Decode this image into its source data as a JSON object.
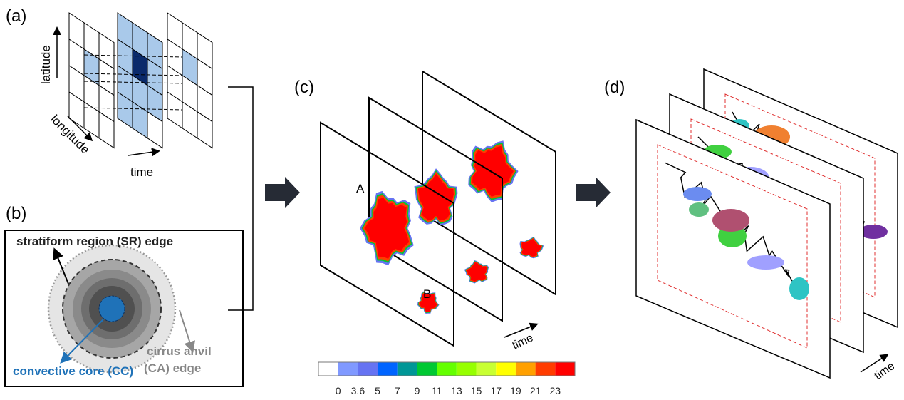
{
  "panels": {
    "a": {
      "label": "(a)",
      "latitude": "latitude",
      "longitude": "longitude",
      "time": "time"
    },
    "b": {
      "label": "(b)",
      "sr_edge": "stratiform region (SR) edge",
      "ca_line1": "cirrus anvil",
      "ca_line2": "(CA) edge",
      "cc": "convective core (CC)"
    },
    "c": {
      "label": "(c)",
      "marker_a": "A",
      "marker_b": "B",
      "time": "time"
    },
    "d": {
      "label": "(d)",
      "time": "time"
    }
  },
  "colors": {
    "cell_light": "#a9c9ea",
    "cell_dark": "#0a2a6b",
    "cc_blue": "#1f72b8",
    "arrow": "#262b35",
    "ca_gray": "#888888"
  },
  "colorbar": {
    "colors": [
      "#ffffff",
      "#8099ff",
      "#6673f2",
      "#0064ff",
      "#009696",
      "#00c832",
      "#64ff00",
      "#96ff00",
      "#c8ff32",
      "#ffff00",
      "#ffa000",
      "#ff3c00",
      "#ff0000"
    ],
    "ticks": [
      "0",
      "3.6",
      "5",
      "7",
      "9",
      "11",
      "13",
      "15",
      "17",
      "19",
      "21",
      "23"
    ]
  }
}
